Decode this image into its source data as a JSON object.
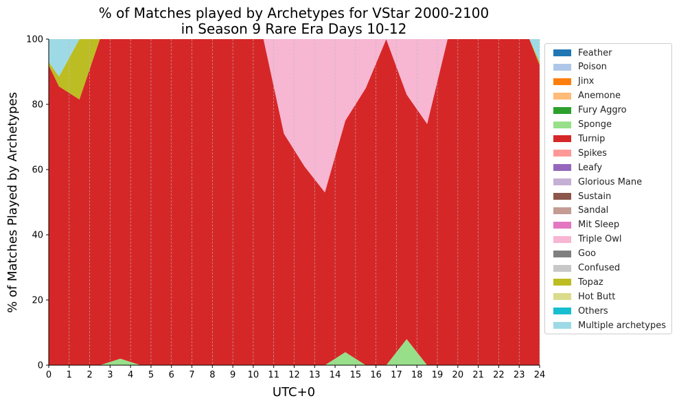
{
  "chart_data": {
    "type": "area",
    "stacked": true,
    "title": "% of Matches played by Archetypes for VStar 2000-2100\nin Season 9 Rare Era Days 10-12",
    "xlabel": "UTC+0",
    "ylabel": "% of Matches Played by Archetypes",
    "xlim": [
      0,
      24
    ],
    "ylim": [
      0,
      100
    ],
    "x_ticks": [
      "0",
      "1",
      "2",
      "3",
      "4",
      "5",
      "6",
      "7",
      "8",
      "9",
      "10",
      "11",
      "12",
      "13",
      "14",
      "15",
      "16",
      "17",
      "18",
      "19",
      "20",
      "21",
      "22",
      "23",
      "24"
    ],
    "y_ticks": [
      "0",
      "20",
      "40",
      "60",
      "80",
      "100"
    ],
    "grid": "vertical dashed",
    "legend_position": "right",
    "x": [
      0,
      0.5,
      1.5,
      2.5,
      3.5,
      4.5,
      5.5,
      6.5,
      7.5,
      8.5,
      9.5,
      10.5,
      11.5,
      12.5,
      13.5,
      14.5,
      15.5,
      16.5,
      17.5,
      18.5,
      19.5,
      20.5,
      21.5,
      22.5,
      23.5,
      24
    ],
    "series": [
      {
        "name": "Feather",
        "color": "#1f77b4",
        "values": [
          0,
          0,
          0,
          0,
          0,
          0,
          0,
          0,
          0,
          0,
          0,
          0,
          0,
          0,
          0,
          0,
          0,
          0,
          0,
          0,
          0,
          0,
          0,
          0,
          0,
          0
        ]
      },
      {
        "name": "Poison",
        "color": "#aec7e8",
        "values": [
          0,
          0,
          0,
          0,
          0,
          0,
          0,
          0,
          0,
          0,
          0,
          0,
          0,
          0,
          0,
          0,
          0,
          0,
          0,
          0,
          0,
          0,
          0,
          0,
          0,
          0
        ]
      },
      {
        "name": "Jinx",
        "color": "#ff7f0e",
        "values": [
          0,
          0,
          0,
          0,
          0,
          0,
          0,
          0,
          0,
          0,
          0,
          0,
          0,
          0,
          0,
          0,
          0,
          0,
          0,
          0,
          0,
          0,
          0,
          0,
          0,
          0
        ]
      },
      {
        "name": "Anemone",
        "color": "#ffbb78",
        "values": [
          0,
          0,
          0,
          0,
          0,
          0,
          0,
          0,
          0,
          0,
          0,
          0,
          0,
          0,
          0,
          0,
          0,
          0,
          0,
          0,
          0,
          0,
          0,
          0,
          0,
          0
        ]
      },
      {
        "name": "Fury Aggro",
        "color": "#2ca02c",
        "values": [
          0,
          0,
          0,
          0,
          0,
          0,
          0,
          0,
          0,
          0,
          0,
          0,
          0,
          0,
          0,
          0,
          0,
          0,
          0,
          0,
          0,
          0,
          0,
          0,
          0,
          0
        ]
      },
      {
        "name": "Sponge",
        "color": "#98df8a",
        "values": [
          0,
          0,
          0,
          0,
          2,
          0,
          0,
          0,
          0,
          0,
          0,
          0,
          0,
          0,
          0,
          4,
          0,
          0,
          8,
          0,
          0,
          0,
          0,
          0,
          0,
          0
        ]
      },
      {
        "name": "Turnip",
        "color": "#d62728",
        "values": [
          92,
          85.5,
          81.5,
          100,
          98,
          100,
          100,
          100,
          100,
          100,
          100,
          100,
          71,
          61,
          53,
          71,
          85,
          100,
          75,
          74,
          100,
          100,
          100,
          100,
          100,
          92
        ]
      },
      {
        "name": "Spikes",
        "color": "#ff9896",
        "values": [
          0,
          0,
          0,
          0,
          0,
          0,
          0,
          0,
          0,
          0,
          0,
          0,
          0,
          0,
          0,
          0,
          0,
          0,
          0,
          0,
          0,
          0,
          0,
          0,
          0,
          0
        ]
      },
      {
        "name": "Leafy",
        "color": "#9467bd",
        "values": [
          0,
          0,
          0,
          0,
          0,
          0,
          0,
          0,
          0,
          0,
          0,
          0,
          0,
          0,
          0,
          0,
          0,
          0,
          0,
          0,
          0,
          0,
          0,
          0,
          0,
          0
        ]
      },
      {
        "name": "Glorious Mane",
        "color": "#c5b0d5",
        "values": [
          0,
          0,
          0,
          0,
          0,
          0,
          0,
          0,
          0,
          0,
          0,
          0,
          0,
          0,
          0,
          0,
          0,
          0,
          0,
          0,
          0,
          0,
          0,
          0,
          0,
          0
        ]
      },
      {
        "name": "Sustain",
        "color": "#8c564b",
        "values": [
          0,
          0,
          0,
          0,
          0,
          0,
          0,
          0,
          0,
          0,
          0,
          0,
          0,
          0,
          0,
          0,
          0,
          0,
          0,
          0,
          0,
          0,
          0,
          0,
          0,
          0
        ]
      },
      {
        "name": "Sandal",
        "color": "#c49c94",
        "values": [
          0,
          0,
          0,
          0,
          0,
          0,
          0,
          0,
          0,
          0,
          0,
          0,
          0,
          0,
          0,
          0,
          0,
          0,
          0,
          0,
          0,
          0,
          0,
          0,
          0,
          0
        ]
      },
      {
        "name": "Mit Sleep",
        "color": "#e377c2",
        "values": [
          0,
          0,
          0,
          0,
          0,
          0,
          0,
          0,
          0,
          0,
          0,
          0,
          0,
          0,
          0,
          0,
          0,
          0,
          0,
          0,
          0,
          0,
          0,
          0,
          0,
          0
        ]
      },
      {
        "name": "Triple Owl",
        "color": "#f7b6d2",
        "values": [
          0,
          0,
          0,
          0,
          0,
          0,
          0,
          0,
          0,
          0,
          0,
          0,
          29,
          39,
          47,
          25,
          15,
          0,
          17,
          26,
          0,
          0,
          0,
          0,
          0,
          0
        ]
      },
      {
        "name": "Goo",
        "color": "#7f7f7f",
        "values": [
          0,
          0,
          0,
          0,
          0,
          0,
          0,
          0,
          0,
          0,
          0,
          0,
          0,
          0,
          0,
          0,
          0,
          0,
          0,
          0,
          0,
          0,
          0,
          0,
          0,
          0
        ]
      },
      {
        "name": "Confused",
        "color": "#c7c7c7",
        "values": [
          0,
          0,
          0,
          0,
          0,
          0,
          0,
          0,
          0,
          0,
          0,
          0,
          0,
          0,
          0,
          0,
          0,
          0,
          0,
          0,
          0,
          0,
          0,
          0,
          0,
          0
        ]
      },
      {
        "name": "Topaz",
        "color": "#bcbd22",
        "values": [
          1,
          3,
          18.5,
          0,
          0,
          0,
          0,
          0,
          0,
          0,
          0,
          0,
          0,
          0,
          0,
          0,
          0,
          0,
          0,
          0,
          0,
          0,
          0,
          0,
          0,
          1
        ]
      },
      {
        "name": "Hot Butt",
        "color": "#dbdb8d",
        "values": [
          0,
          0,
          0,
          0,
          0,
          0,
          0,
          0,
          0,
          0,
          0,
          0,
          0,
          0,
          0,
          0,
          0,
          0,
          0,
          0,
          0,
          0,
          0,
          0,
          0,
          0
        ]
      },
      {
        "name": "Others",
        "color": "#17becf",
        "values": [
          0,
          0,
          0,
          0,
          0,
          0,
          0,
          0,
          0,
          0,
          0,
          0,
          0,
          0,
          0,
          0,
          0,
          0,
          0,
          0,
          0,
          0,
          0,
          0,
          0,
          0
        ]
      },
      {
        "name": "Multiple archetypes",
        "color": "#9edae5",
        "values": [
          7,
          11.5,
          0,
          0,
          0,
          0,
          0,
          0,
          0,
          0,
          0,
          0,
          0,
          0,
          0,
          0,
          0,
          0,
          0,
          0,
          0,
          0,
          0,
          0,
          0,
          7
        ]
      }
    ]
  }
}
